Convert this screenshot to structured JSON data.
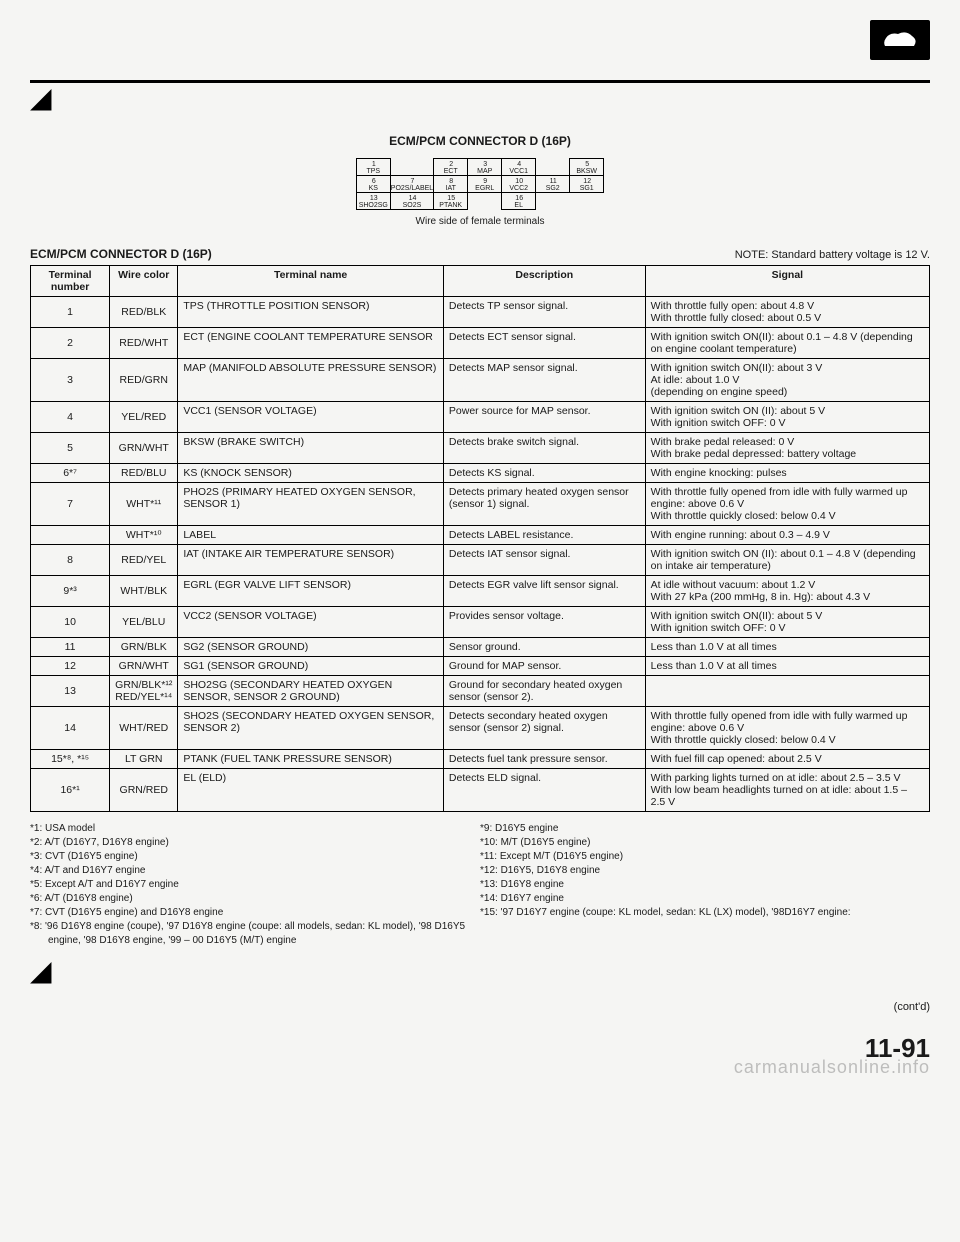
{
  "logo_text": "~",
  "diagram": {
    "title": "ECM/PCM CONNECTOR D (16P)",
    "caption": "Wire side of female terminals",
    "cells": [
      [
        {
          "n": "1",
          "l": "TPS"
        },
        {
          "n": "",
          "l": ""
        },
        {
          "n": "2",
          "l": "ECT"
        },
        {
          "n": "3",
          "l": "MAP"
        },
        {
          "n": "4",
          "l": "VCC1"
        },
        {
          "n": "",
          "l": ""
        },
        {
          "n": "5",
          "l": "BKSW"
        }
      ],
      [
        {
          "n": "6",
          "l": "KS"
        },
        {
          "n": "7",
          "l": "PO2S/LABEL"
        },
        {
          "n": "8",
          "l": "IAT"
        },
        {
          "n": "9",
          "l": "EGRL"
        },
        {
          "n": "10",
          "l": "VCC2"
        },
        {
          "n": "11",
          "l": "SG2"
        },
        {
          "n": "12",
          "l": "SG1"
        }
      ],
      [
        {
          "n": "13",
          "l": "SHO2SG"
        },
        {
          "n": "14",
          "l": "SO2S"
        },
        {
          "n": "15",
          "l": "PTANK"
        },
        {
          "n": "",
          "l": ""
        },
        {
          "n": "16",
          "l": "EL"
        },
        {
          "n": "",
          "l": ""
        },
        {
          "n": "",
          "l": ""
        }
      ]
    ]
  },
  "table_header_left": "ECM/PCM CONNECTOR D (16P)",
  "table_header_right": "NOTE: Standard battery voltage is 12 V.",
  "columns": [
    "Terminal number",
    "Wire color",
    "Terminal name",
    "Description",
    "Signal"
  ],
  "rows": [
    {
      "num": "1",
      "color": "RED/BLK",
      "name": "TPS (THROTTLE POSITION SENSOR)",
      "desc": "Detects TP sensor signal.",
      "sig": "With throttle fully open: about 4.8 V\nWith throttle fully closed: about 0.5 V"
    },
    {
      "num": "2",
      "color": "RED/WHT",
      "name": "ECT (ENGINE COOLANT TEMPERATURE SENSOR",
      "desc": "Detects ECT sensor signal.",
      "sig": "With ignition switch ON(II): about 0.1 – 4.8 V (depending on engine coolant temperature)"
    },
    {
      "num": "3",
      "color": "RED/GRN",
      "name": "MAP (MANIFOLD ABSOLUTE PRESSURE SENSOR)",
      "desc": "Detects MAP sensor signal.",
      "sig": "With ignition switch ON(II): about 3 V\nAt idle: about 1.0 V\n(depending on engine speed)"
    },
    {
      "num": "4",
      "color": "YEL/RED",
      "name": "VCC1 (SENSOR VOLTAGE)",
      "desc": "Power source for MAP sensor.",
      "sig": "With ignition switch ON (II): about 5 V\nWith ignition switch OFF: 0 V"
    },
    {
      "num": "5",
      "color": "GRN/WHT",
      "name": "BKSW (BRAKE SWITCH)",
      "desc": "Detects brake switch signal.",
      "sig": "With brake pedal released: 0 V\nWith brake pedal depressed: battery voltage"
    },
    {
      "num": "6*⁷",
      "color": "RED/BLU",
      "name": "KS (KNOCK SENSOR)",
      "desc": "Detects KS signal.",
      "sig": "With engine knocking: pulses"
    },
    {
      "num": "7",
      "color": "WHT*¹¹",
      "name": "PHO2S (PRIMARY HEATED OXYGEN SENSOR, SENSOR 1)",
      "desc": "Detects primary heated oxygen sensor (sensor 1) signal.",
      "sig": "With throttle fully opened from idle with fully warmed up engine: above 0.6 V\nWith throttle quickly closed: below 0.4 V"
    },
    {
      "num": "",
      "color": "WHT*¹⁰",
      "name": "LABEL",
      "desc": "Detects LABEL resistance.",
      "sig": "With engine running: about 0.3 – 4.9 V"
    },
    {
      "num": "8",
      "color": "RED/YEL",
      "name": "IAT (INTAKE AIR TEMPERATURE SENSOR)",
      "desc": "Detects IAT sensor signal.",
      "sig": "With ignition switch ON (II): about 0.1 – 4.8 V (depending on intake air temperature)"
    },
    {
      "num": "9*³",
      "color": "WHT/BLK",
      "name": "EGRL (EGR VALVE LIFT SENSOR)",
      "desc": "Detects EGR valve lift sensor signal.",
      "sig": "At idle without vacuum: about 1.2 V\nWith 27 kPa (200 mmHg, 8 in. Hg): about 4.3 V"
    },
    {
      "num": "10",
      "color": "YEL/BLU",
      "name": "VCC2 (SENSOR VOLTAGE)",
      "desc": "Provides sensor voltage.",
      "sig": "With ignition switch ON(II): about 5 V\nWith ignition switch OFF: 0 V"
    },
    {
      "num": "11",
      "color": "GRN/BLK",
      "name": "SG2 (SENSOR GROUND)",
      "desc": "Sensor ground.",
      "sig": "Less than 1.0 V at all times"
    },
    {
      "num": "12",
      "color": "GRN/WHT",
      "name": "SG1 (SENSOR GROUND)",
      "desc": "Ground for MAP sensor.",
      "sig": "Less than 1.0 V at all times"
    },
    {
      "num": "13",
      "color": "GRN/BLK*¹²\nRED/YEL*¹⁴",
      "name": "SHO2SG (SECONDARY HEATED OXYGEN SENSOR, SENSOR 2 GROUND)",
      "desc": "Ground for secondary heated oxygen sensor (sensor 2).",
      "sig": ""
    },
    {
      "num": "14",
      "color": "WHT/RED",
      "name": "SHO2S (SECONDARY HEATED OXYGEN SENSOR, SENSOR 2)",
      "desc": "Detects secondary heated oxygen sensor (sensor 2) signal.",
      "sig": "With throttle fully opened from idle with fully warmed up engine: above 0.6 V\nWith throttle quickly closed: below 0.4 V"
    },
    {
      "num": "15*⁸, *¹⁵",
      "color": "LT GRN",
      "name": "PTANK (FUEL TANK PRESSURE SENSOR)",
      "desc": "Detects fuel tank pressure sensor.",
      "sig": "With fuel fill cap opened: about 2.5 V"
    },
    {
      "num": "16*¹",
      "color": "GRN/RED",
      "name": "EL (ELD)",
      "desc": "Detects ELD signal.",
      "sig": "With parking lights turned on at idle: about 2.5 – 3.5 V\nWith low beam headlights turned on at idle: about 1.5 – 2.5 V"
    }
  ],
  "footnotes_left": [
    "*1: USA model",
    "*2: A/T (D16Y7, D16Y8 engine)",
    "*3: CVT (D16Y5 engine)",
    "*4: A/T and D16Y7 engine",
    "*5: Except A/T and D16Y7 engine",
    "*6: A/T (D16Y8 engine)",
    "*7: CVT (D16Y5 engine) and D16Y8 engine",
    "*8: '96 D16Y8 engine (coupe), '97 D16Y8 engine (coupe: all models, sedan: KL model), '98 D16Y5 engine, '98 D16Y8 engine, '99 – 00 D16Y5 (M/T) engine"
  ],
  "footnotes_right": [
    "*9: D16Y5 engine",
    "*10: M/T (D16Y5 engine)",
    "*11: Except M/T (D16Y5 engine)",
    "*12: D16Y5, D16Y8 engine",
    "*13: D16Y8 engine",
    "*14: D16Y7 engine",
    "*15: '97 D16Y7 engine (coupe: KL model, sedan: KL (LX) model), '98D16Y7 engine:"
  ],
  "contd": "(cont'd)",
  "page_number": "11-91",
  "watermark": "carmanualsonline.info"
}
